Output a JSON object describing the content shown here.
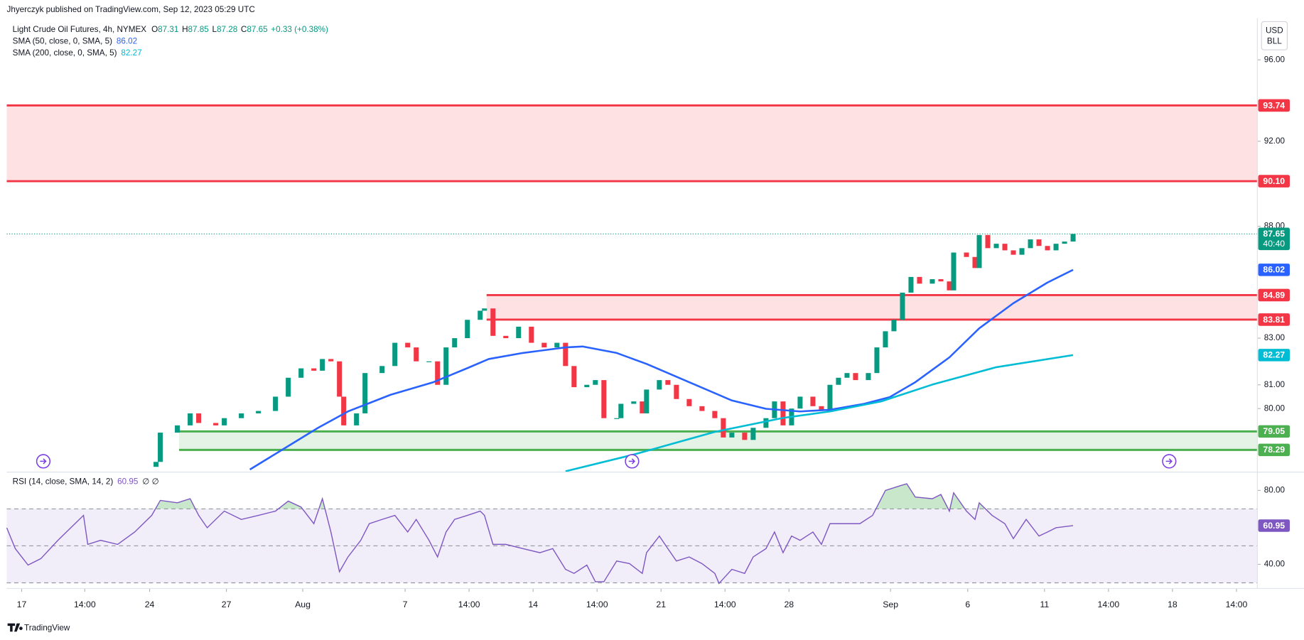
{
  "header": {
    "publisher": "Jhyerczyk published on TradingView.com, Sep 12, 2023 05:29 UTC"
  },
  "footer": {
    "brand": "TradingView"
  },
  "chart_data": [
    {
      "type": "candlestick",
      "title": "Light Crude Oil Futures, 4h, NYMEX",
      "ohlc": [
        {
          "key": "O",
          "value": 87.31
        },
        {
          "key": "H",
          "value": 87.85
        },
        {
          "key": "L",
          "value": 87.28
        },
        {
          "key": "C",
          "value": 87.65
        }
      ],
      "change": "+0.33 (+0.38%)",
      "countdown": "40:40",
      "currency": [
        "USD",
        "BLL"
      ],
      "up_color": "#089981",
      "down_color": "#f23645",
      "first_open": 77.6,
      "x": [
        35,
        36,
        40,
        43,
        45,
        49,
        51,
        55,
        59,
        63,
        66,
        69,
        72,
        74,
        76,
        78,
        79,
        82,
        84,
        88,
        91,
        94,
        96,
        99,
        101,
        103,
        105,
        108,
        111,
        112,
        114,
        117,
        120,
        123,
        126,
        129,
        131,
        133,
        136,
        138,
        140,
        143,
        144,
        147,
        149,
        150,
        153,
        155,
        157,
        160,
        163,
        166,
        168,
        170,
        173,
        175,
        178,
        180,
        182,
        184,
        186,
        189,
        191,
        193,
        195,
        197,
        199,
        202,
        204,
        206,
        208,
        210,
        212,
        214,
        217,
        219,
        221,
        222,
        225,
        227,
        228,
        230,
        232,
        234,
        236,
        238,
        240,
        242,
        244,
        246,
        248,
        250
      ],
      "close": [
        77.8,
        79.0,
        79.3,
        79.8,
        79.4,
        79.3,
        79.6,
        79.8,
        79.9,
        80.5,
        81.3,
        81.7,
        81.6,
        82.1,
        82.0,
        80.5,
        79.3,
        79.8,
        81.5,
        81.8,
        82.8,
        82.6,
        82.0,
        82.0,
        81.0,
        82.6,
        83.0,
        83.8,
        84.2,
        84.3,
        83.1,
        83.0,
        83.5,
        82.8,
        82.6,
        82.8,
        81.8,
        80.9,
        81.0,
        81.2,
        79.6,
        79.6,
        80.2,
        80.3,
        79.8,
        80.8,
        81.2,
        81.0,
        80.4,
        80.1,
        79.9,
        79.6,
        78.8,
        79.0,
        78.7,
        79.2,
        79.6,
        80.3,
        79.3,
        80.0,
        80.5,
        80.1,
        79.9,
        81.0,
        81.3,
        81.5,
        81.2,
        81.5,
        82.6,
        83.3,
        83.8,
        85.0,
        85.7,
        85.4,
        85.6,
        85.5,
        85.1,
        86.8,
        86.6,
        86.1,
        87.6,
        87.0,
        87.2,
        86.9,
        86.7,
        87.0,
        87.4,
        87.1,
        86.9,
        87.2,
        87.3,
        87.65
      ],
      "series": [
        {
          "name": "SMA (50, close, 0, SMA, 5)",
          "color": "#2962ff",
          "x": [
            57,
            65,
            73,
            80,
            90,
            100,
            108,
            113,
            121,
            131,
            135,
            143,
            150,
            160,
            170,
            178,
            186,
            193,
            201,
            207,
            213,
            221,
            228,
            236,
            244,
            250
          ],
          "values": [
            77.49,
            78.34,
            79.2,
            79.88,
            80.58,
            81.11,
            81.71,
            82.1,
            82.36,
            82.6,
            82.64,
            82.36,
            81.89,
            81.11,
            80.34,
            79.99,
            79.88,
            79.95,
            80.2,
            80.48,
            81.11,
            82.17,
            83.43,
            84.53,
            85.45,
            86.02
          ]
        },
        {
          "name": "SMA (200, close, 0, SMA, 5)",
          "color": "#00bcd4",
          "x": [
            131,
            147,
            166,
            182,
            193,
            205,
            217,
            232,
            250
          ],
          "values": [
            77.42,
            78.1,
            79.03,
            79.61,
            79.88,
            80.3,
            81.01,
            81.75,
            82.27
          ]
        }
      ],
      "zones": [
        {
          "top": 93.74,
          "bottom": {
            "value": 90.1,
            "label": "90.10"
          },
          "start": 0,
          "color": "#f23645"
        },
        {
          "top": 84.89,
          "bottom": 83.81,
          "start": 112.5,
          "color": "#f23645"
        },
        {
          "top": 79.05,
          "bottom": 78.29,
          "start": 40.4,
          "color": "#4caf50"
        }
      ],
      "xlim": [
        0,
        293.2
      ],
      "xticks": [
        {
          "value": 3.5,
          "label": "17"
        },
        {
          "value": 18.3,
          "label": "14:00"
        },
        {
          "value": 33.5,
          "label": "24"
        },
        {
          "value": 51.5,
          "label": "27"
        },
        {
          "value": 69.4,
          "label": "Aug"
        },
        {
          "value": 93.4,
          "label": "7"
        },
        {
          "value": 108.4,
          "label": "14:00"
        },
        {
          "value": 123.4,
          "label": "14"
        },
        {
          "value": 138.4,
          "label": "14:00"
        },
        {
          "value": 153.4,
          "label": "21"
        },
        {
          "value": 168.4,
          "label": "14:00"
        },
        {
          "value": 183.4,
          "label": "28"
        },
        {
          "value": 207.2,
          "label": "Sep"
        },
        {
          "value": 225.3,
          "label": "6"
        },
        {
          "value": 243.3,
          "label": "11"
        },
        {
          "value": 258.3,
          "label": "14:00"
        },
        {
          "value": 273.3,
          "label": "18"
        },
        {
          "value": 288.3,
          "label": "14:00"
        }
      ],
      "ylim": [
        77.42,
        98.11
      ],
      "log_scale": true,
      "yticks": [
        {
          "value": 96,
          "label": "96.00"
        },
        {
          "value": 92,
          "label": "92.00"
        },
        {
          "value": 88,
          "label": "88.00"
        },
        {
          "value": 83,
          "label": "83.00"
        },
        {
          "value": 81,
          "label": "81.00"
        },
        {
          "value": 80,
          "label": "80.00"
        }
      ]
    },
    {
      "type": "line",
      "title": "RSI (14, close, SMA, 14, 2)",
      "extra": "∅ ∅",
      "color": "#7e57c2",
      "x": [
        0,
        2,
        5,
        8,
        12,
        16,
        18,
        19,
        22,
        26,
        30,
        34,
        36,
        40,
        43,
        45,
        47,
        51,
        55,
        59,
        63,
        66,
        69,
        72,
        74,
        76,
        78,
        80,
        83,
        85,
        88,
        91,
        94,
        96,
        99,
        101,
        103,
        105,
        108,
        111,
        112,
        114,
        117,
        121,
        125,
        128,
        131,
        133,
        136,
        138,
        140,
        143,
        146,
        149,
        150,
        153,
        155,
        157,
        160,
        163,
        166,
        167,
        170,
        173,
        175,
        178,
        180,
        182,
        184,
        186,
        189,
        191,
        193,
        197,
        200,
        203,
        206,
        209,
        211,
        213,
        217,
        219,
        221,
        222,
        225,
        227,
        228,
        231,
        234,
        236,
        239,
        242,
        244,
        246,
        250
      ],
      "values": [
        59.8,
        48.5,
        39.6,
        43.1,
        53.0,
        62.0,
        66.5,
        50.8,
        53.0,
        50.8,
        57.5,
        66.5,
        74.6,
        73.3,
        75.5,
        66.5,
        59.8,
        68.8,
        64.3,
        66.5,
        68.8,
        74.2,
        71.0,
        62.0,
        75.5,
        57.5,
        36.0,
        44.0,
        53.0,
        62.0,
        64.3,
        66.5,
        57.5,
        64.3,
        53.0,
        44.0,
        57.5,
        64.3,
        66.5,
        68.8,
        66.5,
        50.8,
        50.8,
        48.5,
        46.3,
        48.5,
        37.3,
        35.1,
        39.6,
        30.6,
        30.6,
        41.8,
        40.4,
        35.1,
        46.3,
        55.3,
        48.5,
        41.8,
        44.0,
        40.4,
        35.1,
        29.7,
        37.3,
        35.1,
        44.0,
        48.5,
        57.5,
        46.3,
        55.3,
        53.0,
        57.5,
        50.8,
        62.0,
        62.0,
        62.0,
        66.5,
        80.0,
        82.2,
        83.6,
        76.4,
        75.5,
        77.8,
        68.8,
        78.7,
        68.8,
        64.3,
        73.3,
        66.5,
        62.0,
        53.9,
        64.3,
        55.3,
        57.5,
        59.8,
        60.95
      ],
      "bands": [
        70,
        50,
        30
      ],
      "ylim": [
        27.4,
        89
      ],
      "yticks": [
        {
          "value": 80,
          "label": "80.00"
        },
        {
          "value": 40,
          "label": "40.00"
        }
      ]
    }
  ]
}
